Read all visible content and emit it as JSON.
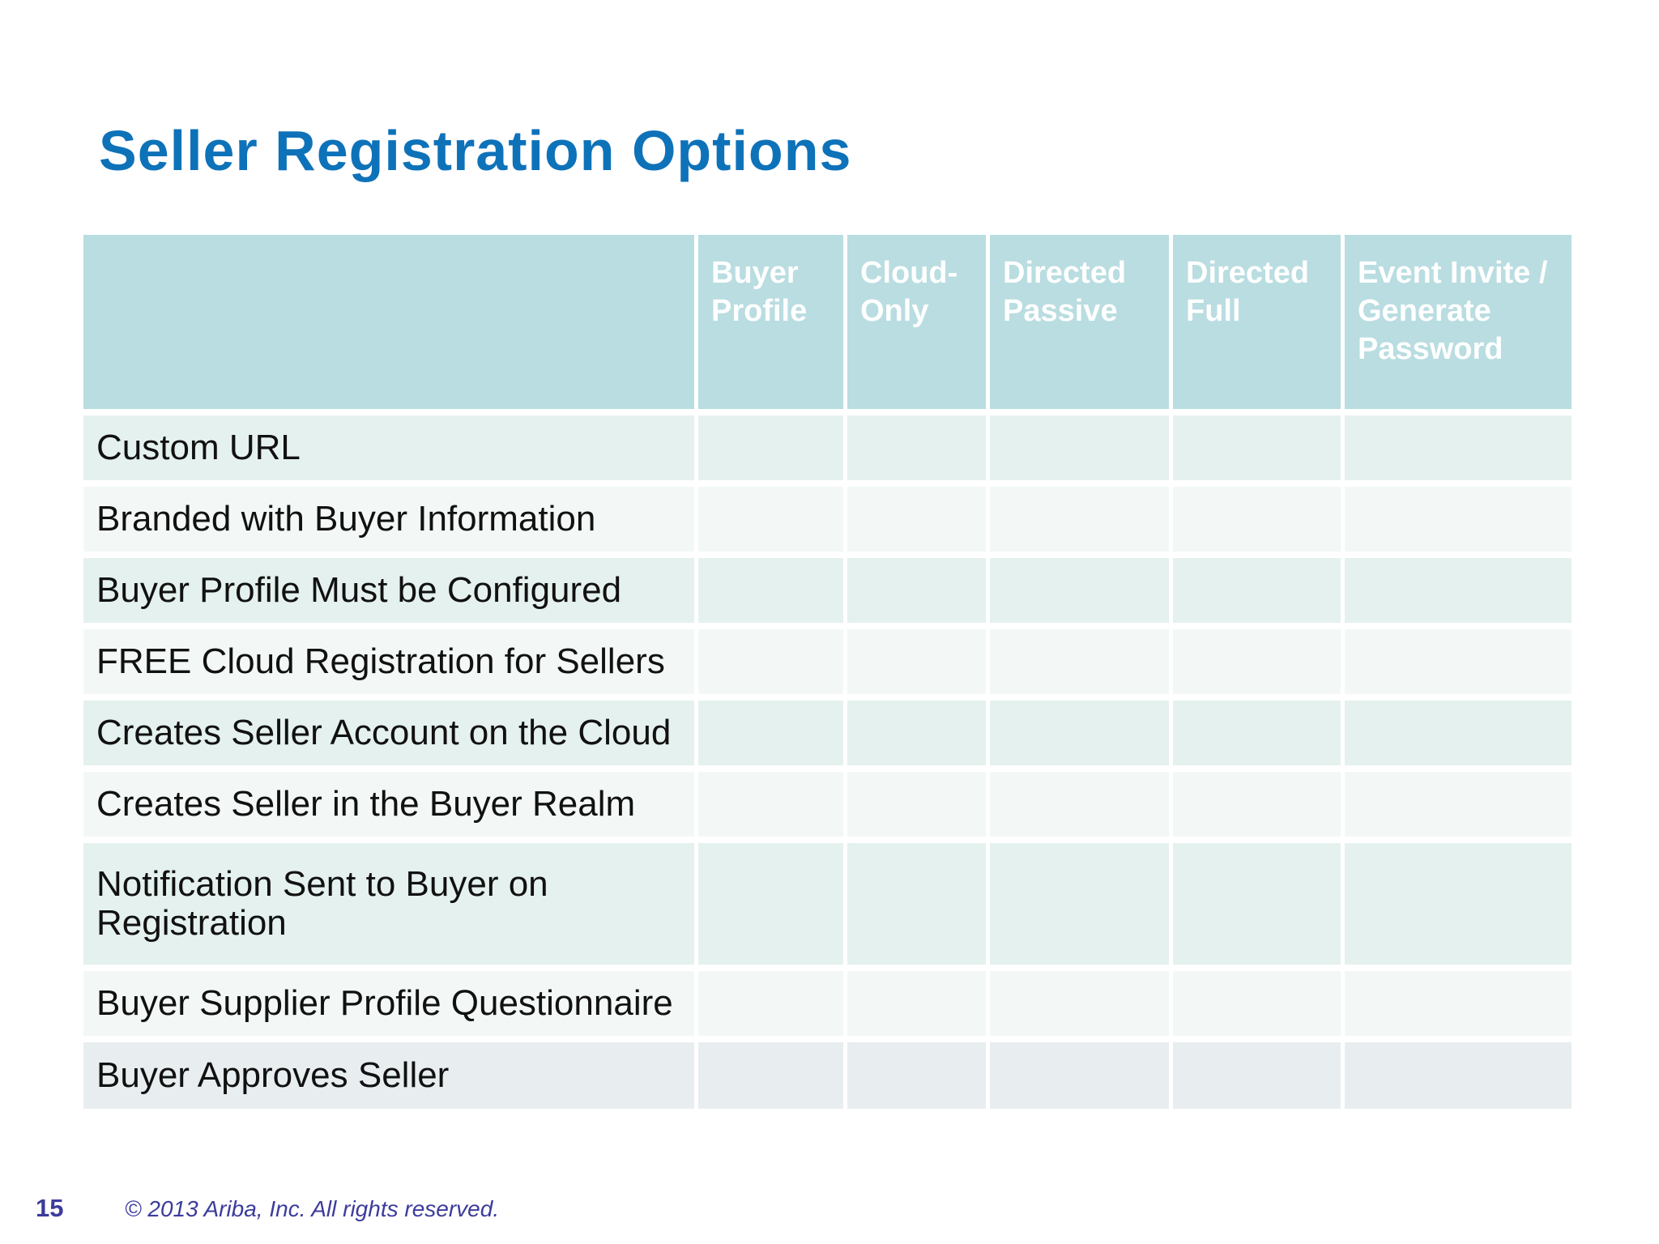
{
  "slide": {
    "title": "Seller Registration Options",
    "page_number": "15",
    "footer_copyright": "© 2013 Ariba, Inc. All rights reserved."
  },
  "table": {
    "header": [
      "",
      "Buyer Profile",
      "Cloud-Only",
      "Directed Passive",
      "Directed Full",
      "Event Invite / Generate Password"
    ],
    "rows": [
      {
        "label": "Custom URL",
        "cells": [
          "",
          "",
          "",
          "",
          ""
        ]
      },
      {
        "label": "Branded with Buyer Information",
        "cells": [
          "",
          "",
          "",
          "",
          ""
        ]
      },
      {
        "label": "Buyer Profile Must be Configured",
        "cells": [
          "",
          "",
          "",
          "",
          ""
        ]
      },
      {
        "label": "FREE Cloud Registration for Sellers",
        "cells": [
          "",
          "",
          "",
          "",
          ""
        ]
      },
      {
        "label": "Creates Seller Account on the Cloud",
        "cells": [
          "",
          "",
          "",
          "",
          ""
        ]
      },
      {
        "label": "Creates Seller in the Buyer Realm",
        "cells": [
          "",
          "",
          "",
          "",
          ""
        ]
      },
      {
        "label": "Notification Sent to Buyer on Registration",
        "cells": [
          "",
          "",
          "",
          "",
          ""
        ]
      },
      {
        "label": "Buyer Supplier Profile Questionnaire",
        "cells": [
          "",
          "",
          "",
          "",
          ""
        ]
      },
      {
        "label": "Buyer Approves Seller",
        "cells": [
          "",
          "",
          "",
          "",
          ""
        ]
      }
    ]
  },
  "colors": {
    "title_blue": "#0e72b9",
    "header_teal": "#b9dde1",
    "row_tint_dark": "#e5f1ee",
    "row_tint_light": "#f3f8f7",
    "row_tint_last": "#e8eef0",
    "footer_indigo": "#3c3c9c",
    "header_text": "#ffffff",
    "body_text": "#111111"
  }
}
